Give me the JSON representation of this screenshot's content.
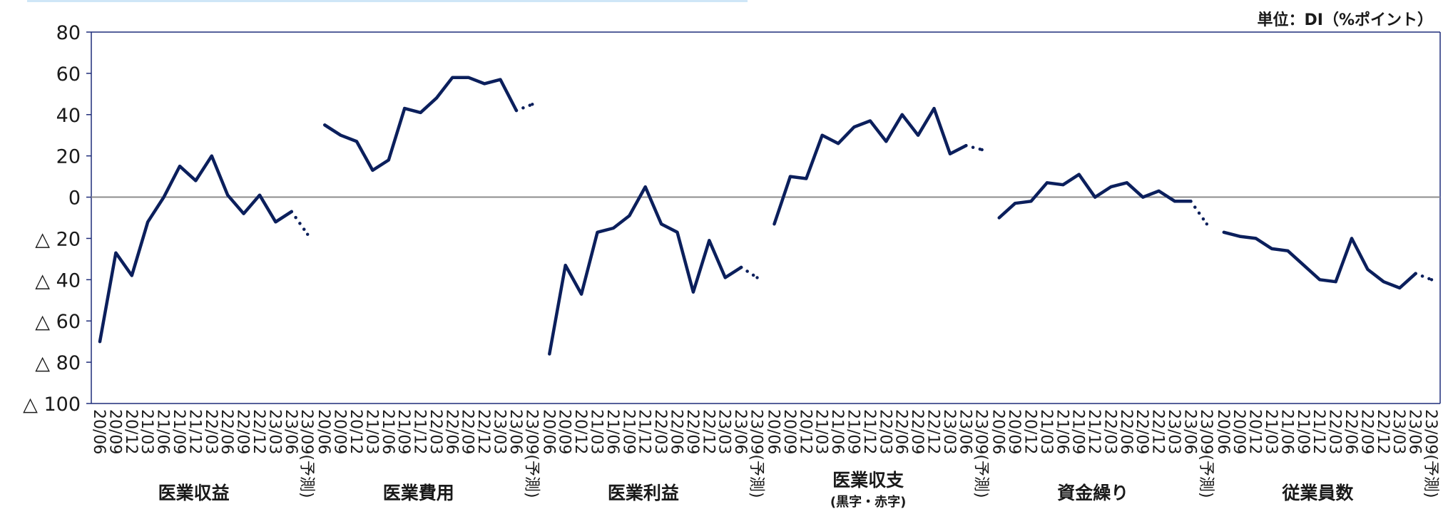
{
  "chart_data": {
    "type": "line",
    "unit_label": "単位：DI（%ポイント）",
    "ylim": [
      -100,
      80
    ],
    "y_ticks": [
      80,
      60,
      40,
      20,
      0,
      -20,
      -40,
      -60,
      -80,
      -100
    ],
    "y_tick_labels": [
      "80",
      "60",
      "40",
      "20",
      "0",
      "△ 20",
      "△ 40",
      "△ 60",
      "△ 80",
      "△ 100"
    ],
    "grid": false,
    "zero_line": true,
    "line_color": "#0b1f5c",
    "zero_line_color": "#8c8c8c",
    "frame_color": "#1f2d7a",
    "groups": [
      {
        "name": "医業収益",
        "sub": "",
        "x": [
          "20/06",
          "20/09",
          "20/12",
          "21/03",
          "21/06",
          "21/09",
          "21/12",
          "22/03",
          "22/06",
          "22/09",
          "22/12",
          "23/03",
          "23/06",
          "23/09(予測)"
        ],
        "values": [
          -70,
          -27,
          -38,
          -12,
          0,
          15,
          8,
          20,
          1,
          -8,
          1,
          -12,
          -7,
          -18
        ]
      },
      {
        "name": "医業費用",
        "sub": "",
        "x": [
          "20/06",
          "20/09",
          "20/12",
          "21/03",
          "21/06",
          "21/09",
          "21/12",
          "22/03",
          "22/06",
          "22/09",
          "22/12",
          "23/03",
          "23/06",
          "23/09(予測)"
        ],
        "values": [
          35,
          30,
          27,
          13,
          18,
          43,
          41,
          48,
          58,
          58,
          55,
          57,
          42,
          45
        ]
      },
      {
        "name": "医業利益",
        "sub": "",
        "x": [
          "20/06",
          "20/09",
          "20/12",
          "21/03",
          "21/06",
          "21/09",
          "21/12",
          "22/03",
          "22/06",
          "22/09",
          "22/12",
          "23/03",
          "23/06",
          "23/09(予測)"
        ],
        "values": [
          -76,
          -33,
          -47,
          -17,
          -15,
          -9,
          5,
          -13,
          -17,
          -46,
          -21,
          -39,
          -34,
          -39
        ]
      },
      {
        "name": "医業収支",
        "sub": "(黒字・赤字)",
        "x": [
          "20/06",
          "20/09",
          "20/12",
          "21/03",
          "21/06",
          "21/09",
          "21/12",
          "22/03",
          "22/06",
          "22/09",
          "22/12",
          "23/03",
          "23/06",
          "23/09(予測)"
        ],
        "values": [
          -13,
          10,
          9,
          30,
          26,
          34,
          37,
          27,
          40,
          30,
          43,
          21,
          25,
          23
        ]
      },
      {
        "name": "資金繰り",
        "sub": "",
        "x": [
          "20/06",
          "20/09",
          "20/12",
          "21/03",
          "21/06",
          "21/09",
          "21/12",
          "22/03",
          "22/06",
          "22/09",
          "22/12",
          "23/03",
          "23/06",
          "23/09(予測)"
        ],
        "values": [
          -10,
          -3,
          -2,
          7,
          6,
          11,
          0,
          5,
          7,
          0,
          3,
          -2,
          -2,
          -13
        ]
      },
      {
        "name": "従業員数",
        "sub": "",
        "x": [
          "20/06",
          "20/09",
          "20/12",
          "21/03",
          "21/06",
          "21/09",
          "21/12",
          "22/03",
          "22/06",
          "22/09",
          "22/12",
          "23/03",
          "23/06",
          "23/09(予測)"
        ],
        "values": [
          -17,
          -19,
          -20,
          -25,
          -26,
          -33,
          -40,
          -41,
          -20,
          -35,
          -41,
          -44,
          -37,
          -40
        ]
      }
    ]
  }
}
